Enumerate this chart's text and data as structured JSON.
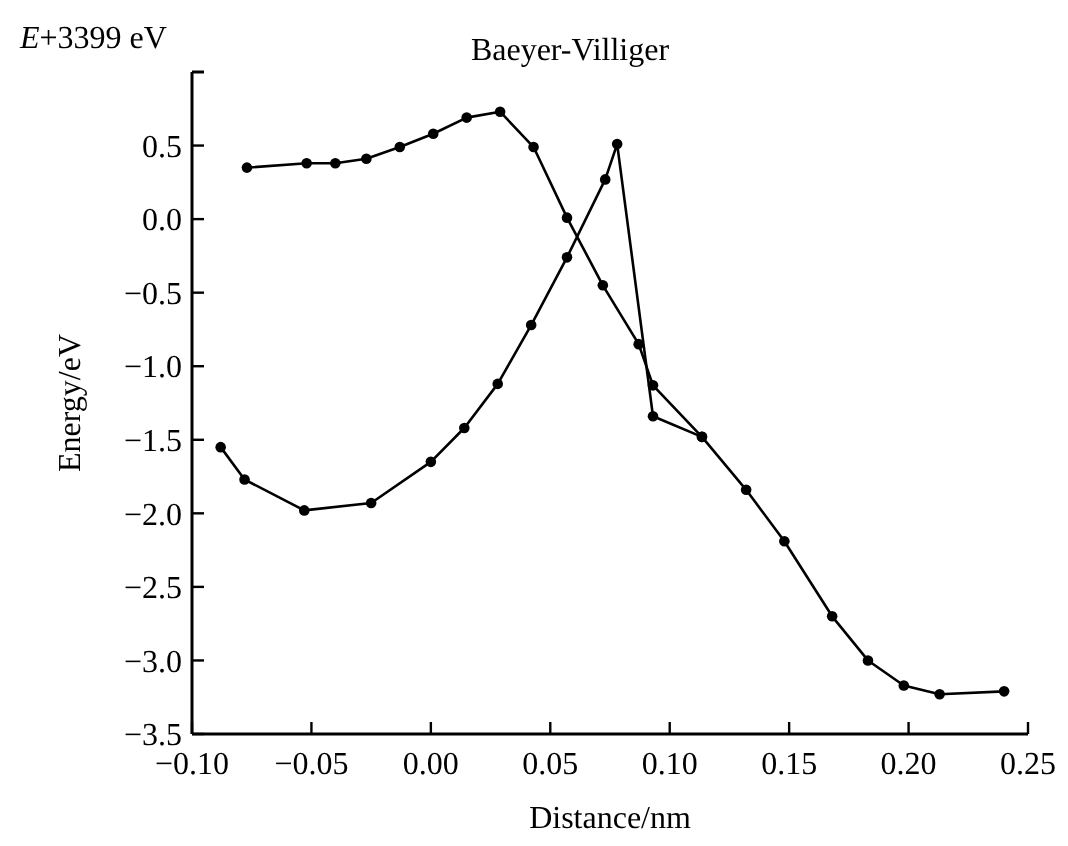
{
  "chart_data": {
    "type": "line",
    "title": "Baeyer-Villiger",
    "xlabel": "Distance/nm",
    "ylabel": "Energy/eV",
    "annotations": [
      "E+3399 eV"
    ],
    "xlim": [
      -0.1,
      0.25
    ],
    "xticks": [
      {
        "value": -0.1,
        "label": "−0.10"
      },
      {
        "value": -0.05,
        "label": "−0.05"
      },
      {
        "value": 0,
        "label": "0.00"
      },
      {
        "value": 0.05,
        "label": "0.05"
      },
      {
        "value": 0.1,
        "label": "0.10"
      },
      {
        "value": 0.15,
        "label": "0.15"
      },
      {
        "value": 0.2,
        "label": "0.20"
      },
      {
        "value": 0.25,
        "label": "0.25"
      }
    ],
    "ylim": [
      -3.5,
      1.0
    ],
    "yticks": [
      {
        "value": -3.5,
        "label": "−3.5"
      },
      {
        "value": -3,
        "label": "−3.0"
      },
      {
        "value": -2.5,
        "label": "−2.5"
      },
      {
        "value": -2,
        "label": "−2.0"
      },
      {
        "value": -1.5,
        "label": "−1.5"
      },
      {
        "value": -1,
        "label": "−1.0"
      },
      {
        "value": -0.5,
        "label": "−0.5"
      },
      {
        "value": 0,
        "label": "0.0"
      },
      {
        "value": 0.5,
        "label": "0.5"
      }
    ],
    "grid": false,
    "marker": "circle",
    "line_style": "solid",
    "series": [
      {
        "color": "#000000",
        "x": [
          -0.077,
          -0.052,
          -0.04,
          -0.027,
          -0.013,
          0.001,
          0.015,
          0.029,
          0.043,
          0.057,
          0.072,
          0.087,
          0.093,
          0.1135,
          0.132,
          0.148,
          0.168,
          0.183,
          0.198,
          0.213,
          0.24
        ],
        "values": [
          0.35,
          0.38,
          0.38,
          0.41,
          0.49,
          0.58,
          0.69,
          0.73,
          0.49,
          0.01,
          -0.45,
          -0.85,
          -1.13,
          -1.48,
          -1.84,
          -2.19,
          -2.7,
          -3.0,
          -3.17,
          -3.23,
          -3.21
        ]
      },
      {
        "color": "#000000",
        "x": [
          -0.088,
          -0.078,
          -0.053,
          -0.025,
          0.0,
          0.014,
          0.028,
          0.042,
          0.057,
          0.073,
          0.078,
          0.093,
          0.1135
        ],
        "values": [
          -1.55,
          -1.77,
          -1.98,
          -1.93,
          -1.65,
          -1.42,
          -1.12,
          -0.72,
          -0.26,
          0.27,
          0.51,
          -1.34,
          -1.48
        ]
      }
    ]
  }
}
